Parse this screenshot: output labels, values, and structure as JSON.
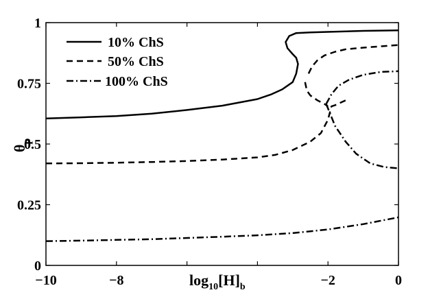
{
  "chart_data": {
    "type": "line",
    "xlabel": {
      "base": "log",
      "sub1": "10",
      "mid": "[H]",
      "sub2": "b"
    },
    "ylabel": {
      "base": "θ",
      "sub": "p"
    },
    "xlim": [
      -10,
      0
    ],
    "ylim": [
      0,
      1
    ],
    "xticks": [
      -10,
      -8,
      -6,
      -4,
      -2,
      0
    ],
    "xtick_labels": [
      "−10",
      "−8",
      "",
      "",
      "−2",
      "0"
    ],
    "yticks": [
      0,
      0.25,
      0.5,
      0.75,
      1
    ],
    "ytick_labels": [
      "0",
      "0.25",
      "0.5",
      "0.75",
      "1"
    ],
    "grid": false,
    "legend_position": "top-left",
    "series": [
      {
        "name": "10% ChS",
        "style": "solid",
        "branches": [
          [
            [
              -10,
              0.605
            ],
            [
              -9,
              0.61
            ],
            [
              -8,
              0.615
            ],
            [
              -7,
              0.625
            ],
            [
              -6,
              0.64
            ],
            [
              -5,
              0.658
            ],
            [
              -4,
              0.685
            ],
            [
              -3.6,
              0.705
            ],
            [
              -3.3,
              0.725
            ],
            [
              -3.0,
              0.755
            ],
            [
              -2.9,
              0.79
            ],
            [
              -2.85,
              0.83
            ],
            [
              -2.9,
              0.855
            ],
            [
              -3.0,
              0.87
            ],
            [
              -3.15,
              0.895
            ],
            [
              -3.2,
              0.92
            ],
            [
              -3.1,
              0.945
            ],
            [
              -2.9,
              0.957
            ],
            [
              -2.5,
              0.96
            ],
            [
              -2.0,
              0.962
            ],
            [
              -1.0,
              0.966
            ],
            [
              0,
              0.968
            ]
          ]
        ]
      },
      {
        "name": "50% ChS",
        "style": "dashed",
        "branches": [
          [
            [
              -10,
              0.42
            ],
            [
              -9,
              0.421
            ],
            [
              -8,
              0.423
            ],
            [
              -7,
              0.426
            ],
            [
              -6,
              0.43
            ],
            [
              -5,
              0.436
            ],
            [
              -4,
              0.445
            ],
            [
              -3.5,
              0.455
            ],
            [
              -3,
              0.475
            ],
            [
              -2.5,
              0.51
            ],
            [
              -2.2,
              0.545
            ],
            [
              -2.0,
              0.6
            ],
            [
              -1.9,
              0.655
            ],
            [
              -1.8,
              0.66
            ],
            [
              -1.5,
              0.68
            ]
          ],
          [
            [
              -2.65,
              0.755
            ],
            [
              -2.6,
              0.72
            ],
            [
              -2.5,
              0.7
            ],
            [
              -2.3,
              0.68
            ],
            [
              -2.1,
              0.665
            ],
            [
              -2.0,
              0.655
            ]
          ],
          [
            [
              -2.55,
              0.79
            ],
            [
              -2.45,
              0.82
            ],
            [
              -2.3,
              0.845
            ],
            [
              -2.1,
              0.865
            ],
            [
              -1.8,
              0.88
            ],
            [
              -1.5,
              0.89
            ],
            [
              -1.0,
              0.897
            ],
            [
              0,
              0.908
            ]
          ]
        ]
      },
      {
        "name": "100% ChS",
        "style": "dashdot",
        "branches": [
          [
            [
              -10,
              0.1
            ],
            [
              -9,
              0.102
            ],
            [
              -8,
              0.105
            ],
            [
              -7,
              0.108
            ],
            [
              -6,
              0.113
            ],
            [
              -5,
              0.118
            ],
            [
              -4,
              0.124
            ],
            [
              -3,
              0.133
            ],
            [
              -2,
              0.148
            ],
            [
              -1,
              0.17
            ],
            [
              0,
              0.198
            ]
          ],
          [
            [
              -2.05,
              0.665
            ],
            [
              -1.9,
              0.705
            ],
            [
              -1.7,
              0.74
            ],
            [
              -1.4,
              0.765
            ],
            [
              -1.0,
              0.785
            ],
            [
              -0.5,
              0.797
            ],
            [
              0,
              0.8
            ]
          ],
          [
            [
              -2.05,
              0.665
            ],
            [
              -1.8,
              0.575
            ],
            [
              -1.5,
              0.51
            ],
            [
              -1.2,
              0.46
            ],
            [
              -0.8,
              0.42
            ],
            [
              -0.4,
              0.405
            ],
            [
              0,
              0.4
            ]
          ]
        ]
      }
    ]
  }
}
